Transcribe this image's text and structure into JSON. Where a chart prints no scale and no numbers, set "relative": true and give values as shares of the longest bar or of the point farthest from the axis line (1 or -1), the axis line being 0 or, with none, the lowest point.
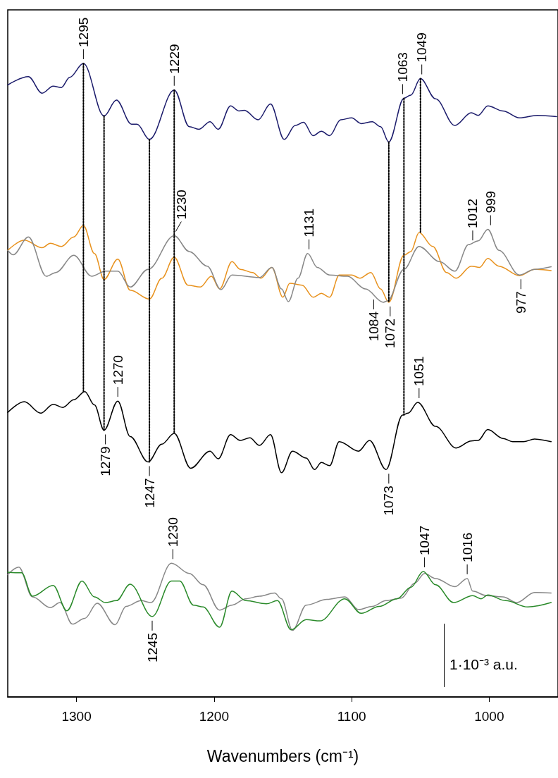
{
  "chart_data": {
    "type": "line",
    "relative": true,
    "marker": "none",
    "xlabel": "Wavenumbers (cm⁻¹)",
    "xlim": [
      1350,
      950
    ],
    "xticks": [
      1300,
      1200,
      1100,
      1000
    ],
    "series": [
      {
        "color": "#1b1b6b",
        "x": [
          1350,
          1335,
          1325,
          1317,
          1311,
          1305,
          1295,
          1280,
          1271,
          1260,
          1256,
          1247,
          1229,
          1218,
          1211,
          1203,
          1197,
          1188,
          1182,
          1178,
          1168,
          1159,
          1149,
          1141,
          1135,
          1128,
          1122,
          1116,
          1108,
          1100,
          1093,
          1085,
          1079,
          1073,
          1062,
          1057,
          1050,
          1039,
          1025,
          1013,
          1008,
          1001,
          990,
          978,
          965,
          951
        ],
        "values": [
          0.966,
          0.979,
          0.953,
          0.964,
          0.962,
          0.978,
          1.0,
          0.917,
          0.942,
          0.904,
          0.904,
          0.88,
          0.958,
          0.9,
          0.896,
          0.908,
          0.896,
          0.933,
          0.925,
          0.926,
          0.911,
          0.936,
          0.88,
          0.902,
          0.907,
          0.886,
          0.893,
          0.886,
          0.911,
          0.914,
          0.905,
          0.908,
          0.9,
          0.876,
          0.945,
          0.95,
          0.976,
          0.944,
          0.902,
          0.922,
          0.918,
          0.933,
          0.925,
          0.914,
          0.918,
          0.916
        ]
      },
      {
        "color": "#e8921e",
        "x": [
          1350,
          1338,
          1325,
          1319,
          1311,
          1302,
          1295,
          1287,
          1280,
          1270,
          1261,
          1247,
          1238,
          1229,
          1219,
          1210,
          1202,
          1196,
          1187,
          1181,
          1172,
          1166,
          1158,
          1150,
          1145,
          1136,
          1128,
          1122,
          1116,
          1109,
          1100,
          1094,
          1086,
          1079,
          1073,
          1062,
          1057,
          1051,
          1041,
          1031,
          1024,
          1013,
          1007,
          1001,
          993,
          978,
          967,
          955
        ],
        "values": [
          0.705,
          0.721,
          0.709,
          0.716,
          0.711,
          0.726,
          0.744,
          0.7,
          0.659,
          0.691,
          0.642,
          0.628,
          0.661,
          0.694,
          0.65,
          0.647,
          0.664,
          0.644,
          0.687,
          0.675,
          0.67,
          0.661,
          0.678,
          0.631,
          0.653,
          0.65,
          0.631,
          0.637,
          0.631,
          0.666,
          0.666,
          0.661,
          0.67,
          0.644,
          0.623,
          0.697,
          0.703,
          0.733,
          0.711,
          0.67,
          0.661,
          0.68,
          0.678,
          0.692,
          0.68,
          0.665,
          0.675,
          0.673
        ]
      },
      {
        "color": "#888888",
        "x": [
          1350,
          1346,
          1335,
          1322,
          1315,
          1302,
          1289,
          1279,
          1270,
          1261,
          1248,
          1229,
          1218,
          1205,
          1195,
          1187,
          1167,
          1158,
          1151,
          1146,
          1139,
          1132,
          1125,
          1116,
          1103,
          1090,
          1077,
          1074,
          1062,
          1051,
          1036,
          1025,
          1015,
          1008,
          1001,
          993,
          978,
          967,
          955
        ],
        "values": [
          0.705,
          0.698,
          0.726,
          0.664,
          0.67,
          0.697,
          0.664,
          0.672,
          0.672,
          0.647,
          0.675,
          0.728,
          0.703,
          0.68,
          0.643,
          0.666,
          0.662,
          0.678,
          0.644,
          0.624,
          0.661,
          0.7,
          0.678,
          0.666,
          0.664,
          0.644,
          0.623,
          0.625,
          0.675,
          0.711,
          0.687,
          0.672,
          0.714,
          0.72,
          0.738,
          0.705,
          0.666,
          0.675,
          0.679
        ]
      },
      {
        "color": "#000000",
        "x": [
          1350,
          1338,
          1326,
          1317,
          1310,
          1302,
          1294,
          1287,
          1280,
          1270,
          1261,
          1248,
          1238,
          1229,
          1217,
          1203,
          1197,
          1188,
          1181,
          1174,
          1167,
          1159,
          1151,
          1143,
          1133,
          1127,
          1122,
          1116,
          1109,
          1095,
          1087,
          1075,
          1063,
          1059,
          1052,
          1039,
          1024,
          1013,
          1008,
          1001,
          990,
          983,
          975,
          967,
          955
        ],
        "values": [
          0.449,
          0.466,
          0.448,
          0.462,
          0.457,
          0.469,
          0.482,
          0.461,
          0.421,
          0.467,
          0.411,
          0.371,
          0.399,
          0.416,
          0.361,
          0.388,
          0.376,
          0.414,
          0.405,
          0.409,
          0.397,
          0.414,
          0.354,
          0.388,
          0.377,
          0.359,
          0.37,
          0.365,
          0.403,
          0.388,
          0.405,
          0.359,
          0.445,
          0.448,
          0.465,
          0.427,
          0.393,
          0.404,
          0.405,
          0.422,
          0.408,
          0.403,
          0.403,
          0.407,
          0.403
        ]
      },
      {
        "color": "#888888",
        "x": [
          1350,
          1342,
          1332,
          1319,
          1312,
          1303,
          1294,
          1285,
          1272,
          1264,
          1253,
          1246,
          1231,
          1218,
          1208,
          1196,
          1187,
          1177,
          1167,
          1156,
          1151,
          1143,
          1133,
          1118,
          1105,
          1095,
          1085,
          1075,
          1064,
          1054,
          1047,
          1039,
          1025,
          1016,
          1012,
          1002,
          990,
          980,
          967,
          955
        ],
        "values": [
          0.193,
          0.205,
          0.158,
          0.141,
          0.149,
          0.115,
          0.124,
          0.148,
          0.114,
          0.143,
          0.152,
          0.149,
          0.211,
          0.195,
          0.177,
          0.137,
          0.145,
          0.155,
          0.159,
          0.164,
          0.155,
          0.105,
          0.145,
          0.154,
          0.158,
          0.138,
          0.143,
          0.152,
          0.156,
          0.18,
          0.195,
          0.187,
          0.174,
          0.187,
          0.167,
          0.16,
          0.158,
          0.149,
          0.165,
          0.164
        ]
      },
      {
        "color": "#2a8a2a",
        "x": [
          1350,
          1340,
          1332,
          1317,
          1307,
          1296,
          1287,
          1279,
          1271,
          1261,
          1245,
          1231,
          1225,
          1215,
          1208,
          1196,
          1187,
          1177,
          1162,
          1154,
          1144,
          1133,
          1123,
          1105,
          1093,
          1080,
          1067,
          1057,
          1048,
          1039,
          1026,
          1012,
          1006,
          1001,
          988,
          972,
          955
        ],
        "values": [
          0.197,
          0.196,
          0.159,
          0.176,
          0.136,
          0.183,
          0.158,
          0.149,
          0.152,
          0.178,
          0.127,
          0.183,
          0.183,
          0.145,
          0.142,
          0.11,
          0.167,
          0.152,
          0.147,
          0.152,
          0.106,
          0.122,
          0.12,
          0.155,
          0.132,
          0.143,
          0.155,
          0.173,
          0.198,
          0.177,
          0.149,
          0.16,
          0.155,
          0.161,
          0.152,
          0.142,
          0.149
        ]
      },
      {
        "color": "#000000",
        "line_style": "dotted",
        "x": [
          1295,
          1295
        ],
        "values": [
          1.0,
          0.482
        ]
      },
      {
        "color": "#000000",
        "line_style": "dotted",
        "x": [
          1280,
          1280
        ],
        "values": [
          0.917,
          0.421
        ]
      },
      {
        "color": "#000000",
        "line_style": "dotted",
        "x": [
          1247,
          1247
        ],
        "values": [
          0.88,
          0.371
        ]
      },
      {
        "color": "#000000",
        "line_style": "dotted",
        "x": [
          1229,
          1229
        ],
        "values": [
          0.958,
          0.416
        ]
      },
      {
        "color": "#000000",
        "line_style": "dotted",
        "x": [
          1073,
          1073
        ],
        "values": [
          0.876,
          0.623
        ]
      },
      {
        "color": "#000000",
        "line_style": "dotted",
        "x": [
          1062,
          1062
        ],
        "values": [
          0.945,
          0.445
        ]
      },
      {
        "color": "#000000",
        "line_style": "dotted",
        "x": [
          1050,
          1050
        ],
        "values": [
          0.976,
          0.733
        ]
      }
    ],
    "annotations": [
      {
        "text": "1295",
        "x": 1295,
        "y": 1.0
      },
      {
        "text": "1229",
        "x": 1229,
        "y": 0.958
      },
      {
        "text": "1063",
        "x": 1063,
        "y": 0.945
      },
      {
        "text": "1049",
        "x": 1049,
        "y": 0.976
      },
      {
        "text": "1230",
        "x": 1230,
        "y": 0.728
      },
      {
        "text": "1131",
        "x": 1131,
        "y": 0.7
      },
      {
        "text": "1012",
        "x": 1012,
        "y": 0.714
      },
      {
        "text": "999",
        "x": 999,
        "y": 0.738
      },
      {
        "text": "1084",
        "x": 1084,
        "y": 0.634
      },
      {
        "text": "1072",
        "x": 1072,
        "y": 0.623
      },
      {
        "text": "977",
        "x": 977,
        "y": 0.666
      },
      {
        "text": "1270",
        "x": 1270,
        "y": 0.467
      },
      {
        "text": "1051",
        "x": 1051,
        "y": 0.465
      },
      {
        "text": "1279",
        "x": 1279,
        "y": 0.421
      },
      {
        "text": "1247",
        "x": 1247,
        "y": 0.371
      },
      {
        "text": "1073",
        "x": 1073,
        "y": 0.359
      },
      {
        "text": "1230",
        "x": 1230,
        "y": 0.211
      },
      {
        "text": "1047",
        "x": 1047,
        "y": 0.198
      },
      {
        "text": "1016",
        "x": 1016,
        "y": 0.187
      },
      {
        "text": "1245",
        "x": 1245,
        "y": 0.127
      },
      "1·10⁻³ a.u."
    ]
  }
}
